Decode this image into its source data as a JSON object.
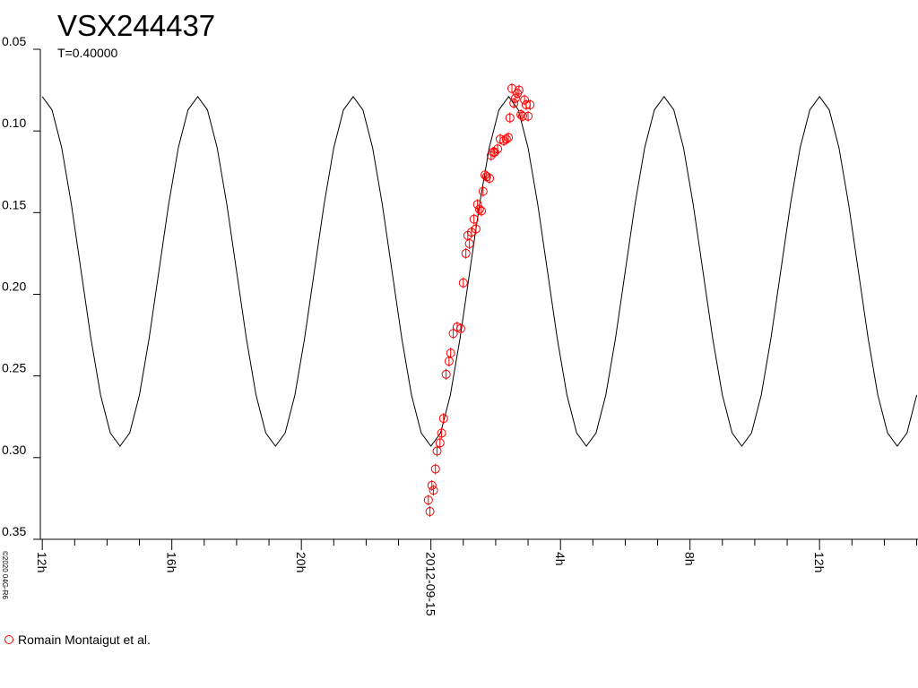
{
  "chart_data": {
    "type": "scatter",
    "title": "VSX244437",
    "subtitle": "T=0.40000",
    "credit": "©2020 04G-R6",
    "xlim": [
      -12.06,
      15.04
    ],
    "ylim": [
      0.05,
      0.35
    ],
    "y_inverted": true,
    "xticks": [
      {
        "value": -12,
        "label": "12h"
      },
      {
        "value": -8,
        "label": "16h"
      },
      {
        "value": -4,
        "label": "20h"
      },
      {
        "value": 0,
        "label": "2012-09-15"
      },
      {
        "value": 4,
        "label": "4h"
      },
      {
        "value": 8,
        "label": "8h"
      },
      {
        "value": 12,
        "label": "12h"
      }
    ],
    "xminorticks": [
      -11,
      -10,
      -9,
      -7,
      -6,
      -5,
      -3,
      -2,
      -1,
      1,
      2,
      3,
      5,
      6,
      7,
      9,
      10,
      11,
      13,
      14,
      15
    ],
    "yticks": [
      {
        "value": 0.05,
        "label": "0.05"
      },
      {
        "value": 0.1,
        "label": "0.10"
      },
      {
        "value": 0.15,
        "label": "0.15"
      },
      {
        "value": 0.2,
        "label": "0.20"
      },
      {
        "value": 0.25,
        "label": "0.25"
      },
      {
        "value": 0.3,
        "label": "0.30"
      },
      {
        "value": 0.35,
        "label": "0.35"
      }
    ],
    "model": {
      "color": "#000000",
      "x": [
        -12.0,
        -11.7,
        -11.4,
        -11.1,
        -10.8,
        -10.5,
        -10.2,
        -9.9,
        -9.6,
        -9.3,
        -9.0,
        -8.7,
        -8.4,
        -8.1,
        -7.8,
        -7.5,
        -7.2,
        -6.9,
        -6.6,
        -6.3,
        -6.0,
        -5.7,
        -5.4,
        -5.1,
        -4.8,
        -4.5,
        -4.2,
        -3.9,
        -3.6,
        -3.3,
        -3.0,
        -2.7,
        -2.4,
        -2.1,
        -1.8,
        -1.5,
        -1.2,
        -0.9,
        -0.6,
        -0.3,
        0.0,
        0.3,
        0.6,
        0.9,
        1.2,
        1.5,
        1.8,
        2.1,
        2.4,
        2.7,
        3.0,
        3.3,
        3.6,
        3.9,
        4.2,
        4.5,
        4.8,
        5.1,
        5.4,
        5.7,
        6.0,
        6.3,
        6.6,
        6.9,
        7.2,
        7.5,
        7.8,
        8.1,
        8.4,
        8.7,
        9.0,
        9.3,
        9.6,
        9.9,
        10.2,
        10.5,
        10.8,
        11.1,
        11.4,
        11.7,
        12.0,
        12.3,
        12.6,
        12.9,
        13.2,
        13.5,
        13.8,
        14.1,
        14.4,
        14.7,
        15.0
      ],
      "values": [
        0.079,
        0.0871,
        0.1103,
        0.1451,
        0.186,
        0.2269,
        0.2617,
        0.2849,
        0.293,
        0.2849,
        0.2617,
        0.2269,
        0.186,
        0.1451,
        0.1103,
        0.0871,
        0.079,
        0.0871,
        0.1103,
        0.1451,
        0.186,
        0.2269,
        0.2617,
        0.2849,
        0.293,
        0.2849,
        0.2617,
        0.2269,
        0.186,
        0.1451,
        0.1103,
        0.0871,
        0.079,
        0.0871,
        0.1103,
        0.1451,
        0.186,
        0.2269,
        0.2617,
        0.2849,
        0.293,
        0.2849,
        0.2617,
        0.2269,
        0.186,
        0.1451,
        0.1103,
        0.0871,
        0.079,
        0.0871,
        0.1103,
        0.1451,
        0.186,
        0.2269,
        0.2617,
        0.2849,
        0.293,
        0.2849,
        0.2617,
        0.2269,
        0.186,
        0.1451,
        0.1103,
        0.0871,
        0.079,
        0.0871,
        0.1103,
        0.1451,
        0.186,
        0.2269,
        0.2617,
        0.2849,
        0.293,
        0.2849,
        0.2617,
        0.2269,
        0.186,
        0.1451,
        0.1103,
        0.0871,
        0.079,
        0.0871,
        0.1103,
        0.1451,
        0.186,
        0.2269,
        0.2617,
        0.2849,
        0.293,
        0.2849,
        0.2617
      ]
    },
    "series": [
      {
        "name": "Romain Montaigut et al.",
        "color": "#ff0000",
        "x": [
          -0.03,
          -0.08,
          0.03,
          0.08,
          0.14,
          0.19,
          0.28,
          0.33,
          0.39,
          0.47,
          0.56,
          0.61,
          0.69,
          0.81,
          0.92,
          1.0,
          1.08,
          1.14,
          1.19,
          1.25,
          1.33,
          1.39,
          1.44,
          1.5,
          1.56,
          1.61,
          1.67,
          1.72,
          1.81,
          1.86,
          1.92,
          1.97,
          2.06,
          2.14,
          2.25,
          2.33,
          2.39,
          2.44,
          2.5,
          2.56,
          2.61,
          2.67,
          2.72,
          2.78,
          2.83,
          2.89,
          2.94,
          3.0,
          3.06
        ],
        "values": [
          0.333,
          0.326,
          0.317,
          0.32,
          0.307,
          0.296,
          0.291,
          0.285,
          0.276,
          0.249,
          0.241,
          0.236,
          0.224,
          0.22,
          0.221,
          0.193,
          0.175,
          0.164,
          0.169,
          0.162,
          0.154,
          0.16,
          0.145,
          0.148,
          0.149,
          0.137,
          0.127,
          0.128,
          0.129,
          0.115,
          0.113,
          0.113,
          0.111,
          0.105,
          0.106,
          0.105,
          0.104,
          0.092,
          0.074,
          0.083,
          0.08,
          0.077,
          0.075,
          0.09,
          0.091,
          0.081,
          0.084,
          0.091,
          0.084
        ]
      }
    ]
  }
}
